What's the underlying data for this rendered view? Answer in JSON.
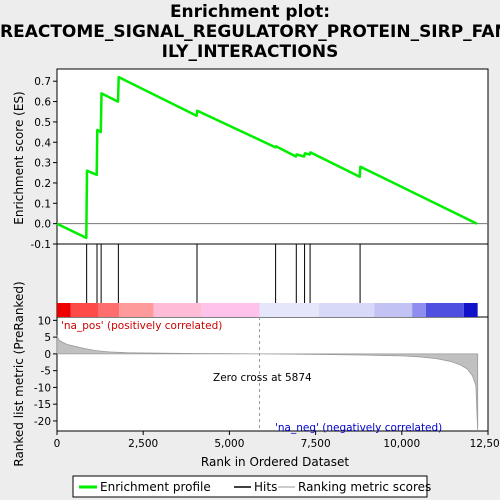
{
  "title_lines": [
    "Enrichment plot:",
    "REACTOME_SIGNAL_REGULATORY_PROTEIN_SIRP_FAM",
    "ILY_INTERACTIONS"
  ],
  "chart_data": {
    "type": "line",
    "x_label": "Rank in Ordered Dataset",
    "x_range": [
      0,
      12500
    ],
    "x_ticks": [
      0,
      2500,
      5000,
      7500,
      10000,
      12500
    ],
    "x_tick_labels": [
      "0",
      "2,500",
      "5,000",
      "7,500",
      "10,000",
      "12,500"
    ],
    "es_panel": {
      "ylabel": "Enrichment score (ES)",
      "ylim": [
        -0.1,
        0.76
      ],
      "y_ticks": [
        -0.1,
        0.0,
        0.1,
        0.2,
        0.3,
        0.4,
        0.5,
        0.6,
        0.7
      ],
      "y_tick_labels": [
        "-0.1",
        "0.0",
        "0.1",
        "0.2",
        "0.3",
        "0.4",
        "0.5",
        "0.6",
        "0.7"
      ],
      "series": [
        {
          "name": "Enrichment profile",
          "color": "#00ee00",
          "x": [
            0,
            850,
            870,
            1150,
            1170,
            1270,
            1290,
            1770,
            1790,
            4050,
            4070,
            6330,
            6350,
            6930,
            6950,
            7170,
            7190,
            7330,
            7350,
            8780,
            8800,
            12180
          ],
          "y": [
            0.0,
            -0.07,
            0.26,
            0.24,
            0.46,
            0.45,
            0.64,
            0.6,
            0.72,
            0.53,
            0.555,
            0.375,
            0.38,
            0.33,
            0.34,
            0.33,
            0.345,
            0.34,
            0.35,
            0.23,
            0.28,
            0.0
          ]
        }
      ]
    },
    "hits": {
      "name": "Hits",
      "positions": [
        860,
        1160,
        1280,
        1780,
        4060,
        6340,
        6940,
        7180,
        7340,
        8790
      ]
    },
    "metric_panel": {
      "ylabel": "Ranked list metric (PreRanked)",
      "ylim": [
        -23,
        11
      ],
      "y_ticks": [
        -20,
        -15,
        -10,
        -5,
        0,
        5,
        10
      ],
      "y_tick_labels": [
        "-20",
        "-15",
        "-10",
        "-5",
        "0",
        "5",
        "10"
      ],
      "series_name": "Ranking metric scores",
      "profile_x": [
        0,
        50,
        150,
        300,
        500,
        800,
        1100,
        1500,
        2000,
        3000,
        4000,
        5000,
        5874,
        7000,
        8000,
        9000,
        10000,
        10500,
        11000,
        11400,
        11700,
        11900,
        12050,
        12150,
        12200
      ],
      "profile_y": [
        5.5,
        4.2,
        3.5,
        2.8,
        2.3,
        1.6,
        1.0,
        0.6,
        0.35,
        0.2,
        0.1,
        0.05,
        0.0,
        -0.1,
        -0.2,
        -0.35,
        -0.6,
        -0.9,
        -1.4,
        -2.2,
        -3.3,
        -4.5,
        -6.5,
        -9.5,
        -23.0
      ],
      "zero_cross_label": "Zero cross at 5874",
      "zero_cross_x": 5874,
      "pos_label": "'na_pos' (positively correlated)",
      "neg_label": "'na_neg' (negatively correlated)"
    },
    "legend": {
      "placement": "bottom",
      "items": [
        "Enrichment profile",
        "Hits",
        "Ranking metric scores"
      ]
    },
    "heat_bar": {
      "segments": [
        {
          "from": 0,
          "to": 400,
          "color": "#ee0000"
        },
        {
          "from": 400,
          "to": 1200,
          "color": "#ff4a4a"
        },
        {
          "from": 1200,
          "to": 1800,
          "color": "#ff6e6e"
        },
        {
          "from": 1800,
          "to": 2800,
          "color": "#ff9a9a"
        },
        {
          "from": 2800,
          "to": 4200,
          "color": "#ffbcd6"
        },
        {
          "from": 4200,
          "to": 5874,
          "color": "#ffc2ea"
        },
        {
          "from": 5874,
          "to": 7600,
          "color": "#e6e6fb"
        },
        {
          "from": 7600,
          "to": 9200,
          "color": "#d8d8f8"
        },
        {
          "from": 9200,
          "to": 10300,
          "color": "#c2c2f4"
        },
        {
          "from": 10300,
          "to": 10700,
          "color": "#8e8ef0"
        },
        {
          "from": 10700,
          "to": 11800,
          "color": "#5050e0"
        },
        {
          "from": 11800,
          "to": 12200,
          "color": "#1212c8"
        }
      ]
    }
  }
}
